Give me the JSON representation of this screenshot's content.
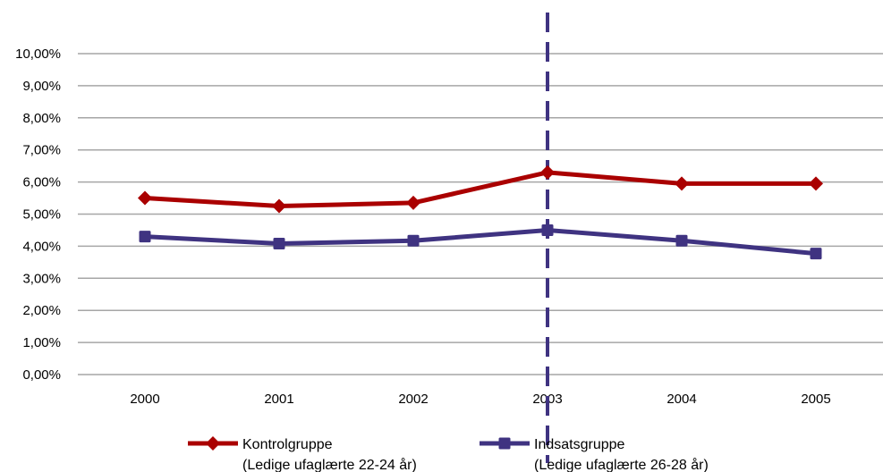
{
  "chart_data": {
    "type": "line",
    "title": "",
    "xlabel": "",
    "ylabel": "",
    "x": [
      "2000",
      "2001",
      "2002",
      "2003",
      "2004",
      "2005"
    ],
    "ylim": [
      0,
      10
    ],
    "y_ticks": [
      "0,00%",
      "1,00%",
      "2,00%",
      "3,00%",
      "4,00%",
      "5,00%",
      "6,00%",
      "7,00%",
      "8,00%",
      "9,00%",
      "10,00%"
    ],
    "grid": true,
    "legend_position": "bottom",
    "series": [
      {
        "name": "Kontrolgruppe",
        "name_line2": "(Ledige ufaglærte 22-24 år)",
        "color": "#aa0000",
        "marker": "diamond",
        "values": [
          5.5,
          5.25,
          5.35,
          6.3,
          5.95,
          5.95
        ]
      },
      {
        "name": "Indsatsgruppe",
        "name_line2": "(Ledige ufaglærte 26-28 år)",
        "color": "#3f3381",
        "marker": "square",
        "values": [
          4.3,
          4.08,
          4.17,
          4.5,
          4.17,
          3.77
        ]
      }
    ],
    "reference_line": {
      "x": "2003",
      "style": "dashed",
      "color": "#3f3381"
    }
  }
}
